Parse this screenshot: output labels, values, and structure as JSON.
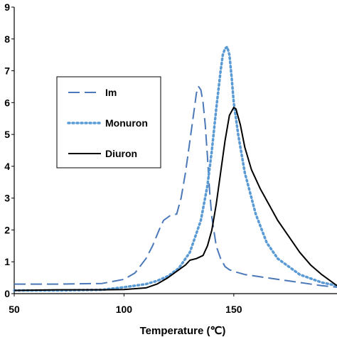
{
  "chart_data": {
    "type": "line",
    "title": "",
    "xlabel": "Temperature (℃)",
    "ylabel": "",
    "xlim": [
      50,
      197
    ],
    "ylim": [
      0,
      9
    ],
    "xticks": [
      50,
      100,
      150
    ],
    "yticks": [
      0,
      1,
      2,
      3,
      4,
      5,
      6,
      7,
      8,
      9
    ],
    "grid": false,
    "legend_position": "left",
    "series": [
      {
        "name": "Im",
        "color": "#4a78b8",
        "style": "dashed",
        "x": [
          50,
          70,
          90,
          100,
          105,
          110,
          113,
          116,
          118,
          121,
          124,
          126,
          128,
          130,
          132,
          133,
          134,
          135,
          136,
          137,
          138,
          139,
          140,
          142,
          144,
          146,
          148,
          150,
          155,
          160,
          170,
          180,
          190,
          197
        ],
        "y": [
          0.3,
          0.3,
          0.32,
          0.45,
          0.65,
          1.1,
          1.5,
          2.0,
          2.3,
          2.45,
          2.5,
          3.0,
          3.8,
          4.8,
          5.8,
          6.3,
          6.5,
          6.4,
          6.0,
          5.3,
          4.3,
          3.2,
          2.4,
          1.5,
          1.1,
          0.85,
          0.75,
          0.7,
          0.6,
          0.55,
          0.45,
          0.35,
          0.25,
          0.2
        ]
      },
      {
        "name": "Monuron",
        "color": "#5b9bd5",
        "style": "dotted",
        "x": [
          50,
          70,
          90,
          100,
          110,
          115,
          120,
          125,
          130,
          135,
          138,
          140,
          142,
          144,
          145,
          146,
          147,
          148,
          149,
          150,
          152,
          155,
          160,
          165,
          170,
          180,
          190,
          197
        ],
        "y": [
          0.1,
          0.1,
          0.12,
          0.2,
          0.3,
          0.4,
          0.55,
          0.8,
          1.3,
          2.3,
          3.4,
          4.5,
          5.8,
          7.0,
          7.5,
          7.7,
          7.75,
          7.5,
          6.8,
          6.0,
          5.0,
          3.8,
          2.5,
          1.6,
          1.1,
          0.6,
          0.35,
          0.25
        ]
      },
      {
        "name": "Diuron",
        "color": "#000000",
        "style": "solid",
        "x": [
          50,
          70,
          90,
          100,
          110,
          115,
          120,
          125,
          128,
          130,
          133,
          136,
          138,
          140,
          142,
          144,
          146,
          148,
          150,
          151,
          153,
          155,
          158,
          162,
          166,
          170,
          175,
          180,
          185,
          190,
          197
        ],
        "y": [
          0.1,
          0.12,
          0.12,
          0.13,
          0.18,
          0.3,
          0.5,
          0.75,
          0.9,
          1.05,
          1.1,
          1.2,
          1.5,
          2.0,
          2.8,
          3.8,
          4.8,
          5.6,
          5.85,
          5.8,
          5.3,
          4.6,
          3.9,
          3.3,
          2.8,
          2.3,
          1.8,
          1.3,
          0.9,
          0.6,
          0.25
        ]
      }
    ]
  }
}
